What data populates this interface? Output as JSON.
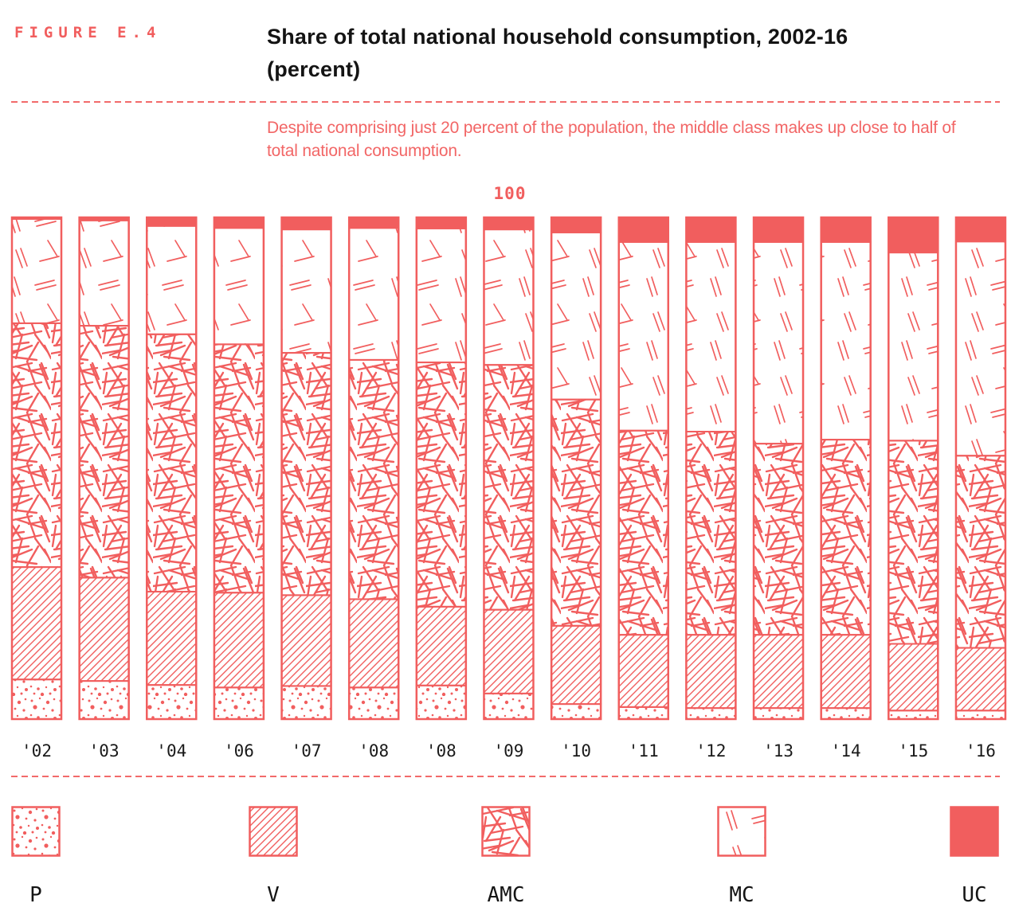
{
  "colors": {
    "accent": "#F15E5E",
    "text_dark": "#141414"
  },
  "header": {
    "figure_label": "FIGURE E.4",
    "title": "Share of total national household consumption, 2002-16 (percent)",
    "subtitle": "Despite comprising just 20 percent of the population, the middle class makes up close to half of total national consumption."
  },
  "chart_data": {
    "type": "bar",
    "subtype": "stacked-100-percent",
    "title": "Share of total national household consumption, 2002-16 (percent)",
    "axis_top_label": "100",
    "ylim": [
      0,
      100
    ],
    "grid": false,
    "legend_position": "bottom",
    "categories": [
      "'02",
      "'03",
      "'04",
      "'06",
      "'07",
      "'08",
      "'08",
      "'09",
      "'10",
      "'11",
      "'12",
      "'13",
      "'14",
      "'15",
      "'16"
    ],
    "series": [
      {
        "name": "P",
        "pattern": "dots",
        "values": [
          7.9,
          7.6,
          6.8,
          6.3,
          6.6,
          6.3,
          6.7,
          5.1,
          3.0,
          2.4,
          2.2,
          2.2,
          2.2,
          1.7,
          1.7
        ]
      },
      {
        "name": "V",
        "pattern": "diagonal",
        "values": [
          22.4,
          20.6,
          18.6,
          18.9,
          18.1,
          17.6,
          15.7,
          16.7,
          15.6,
          14.4,
          14.6,
          14.6,
          14.6,
          13.3,
          12.5
        ]
      },
      {
        "name": "AMC",
        "pattern": "crosshatch",
        "values": [
          48.6,
          50.2,
          51.3,
          49.5,
          48.3,
          47.7,
          48.7,
          48.8,
          45.1,
          40.7,
          40.5,
          38.1,
          38.9,
          40.5,
          38.3
        ]
      },
      {
        "name": "MC",
        "pattern": "sparse",
        "values": [
          20.8,
          21.0,
          21.6,
          23.2,
          24.6,
          26.3,
          26.7,
          27.0,
          33.3,
          37.6,
          37.8,
          40.2,
          39.4,
          37.5,
          42.7
        ]
      },
      {
        "name": "UC",
        "pattern": "solid",
        "values": [
          0.3,
          0.6,
          1.7,
          2.1,
          2.4,
          2.1,
          2.2,
          2.4,
          3.0,
          4.9,
          4.9,
          4.9,
          4.9,
          7.0,
          4.8
        ]
      }
    ],
    "legend": [
      {
        "label": "P",
        "pattern": "dots"
      },
      {
        "label": "V",
        "pattern": "diagonal"
      },
      {
        "label": "AMC",
        "pattern": "crosshatch"
      },
      {
        "label": "MC",
        "pattern": "sparse"
      },
      {
        "label": "UC",
        "pattern": "solid"
      }
    ]
  }
}
